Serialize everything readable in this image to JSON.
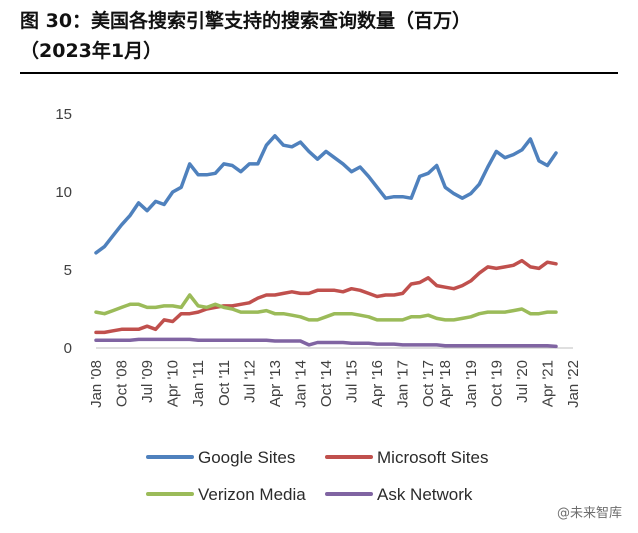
{
  "header": {
    "title_line1": "图 30：美国各搜索引擎支持的搜索查询数量（百万）",
    "title_line2": "（2023年1月）"
  },
  "watermark": "@未来智库",
  "chart_data": {
    "type": "line",
    "x_start": "Jan 2008",
    "x_end": "Jan 2022",
    "points_per_year": 4,
    "x_tick_labels": [
      "Jan '08",
      "Oct '08",
      "Jul '09",
      "Apr '10",
      "Jan '11",
      "Oct '11",
      "Jul '12",
      "Apr '13",
      "Jan '14",
      "Oct '14",
      "Jul '15",
      "Apr '16",
      "Jan '17",
      "Oct '17",
      "Apr '18",
      "Jan '19",
      "Oct '19",
      "Jul '20",
      "Apr '21",
      "Jan '22"
    ],
    "x_tick_index": [
      0,
      3,
      6,
      9,
      12,
      15,
      18,
      21,
      24,
      27,
      30,
      33,
      36,
      39,
      41,
      44,
      47,
      50,
      53,
      56
    ],
    "y_ticks": [
      "0",
      "5",
      "10",
      "15"
    ],
    "ylim": [
      0,
      15
    ],
    "grid": false,
    "legend_position": "bottom",
    "series": [
      {
        "name": "Google Sites",
        "color": "#4f81bd",
        "values": [
          6.1,
          6.5,
          7.2,
          7.9,
          8.5,
          9.3,
          8.8,
          9.4,
          9.2,
          10.0,
          10.3,
          11.8,
          11.1,
          11.1,
          11.2,
          11.8,
          11.7,
          11.3,
          11.8,
          11.8,
          13.0,
          13.6,
          13.0,
          12.9,
          13.2,
          12.6,
          12.1,
          12.6,
          12.2,
          11.8,
          11.3,
          11.6,
          11.0,
          10.3,
          9.6,
          9.7,
          9.7,
          9.6,
          11.0,
          11.2,
          11.7,
          10.3,
          9.9,
          9.6,
          9.9,
          10.5,
          11.6,
          12.6,
          12.2,
          12.4,
          12.7,
          13.4,
          12.0,
          11.7,
          12.5
        ]
      },
      {
        "name": "Microsoft Sites",
        "color": "#c0504d",
        "values": [
          1.0,
          1.0,
          1.1,
          1.2,
          1.2,
          1.2,
          1.4,
          1.2,
          1.8,
          1.7,
          2.2,
          2.2,
          2.3,
          2.5,
          2.6,
          2.7,
          2.7,
          2.8,
          2.9,
          3.2,
          3.4,
          3.4,
          3.5,
          3.6,
          3.5,
          3.5,
          3.7,
          3.7,
          3.7,
          3.6,
          3.8,
          3.7,
          3.5,
          3.3,
          3.4,
          3.4,
          3.5,
          4.1,
          4.2,
          4.5,
          4.0,
          3.9,
          3.8,
          4.0,
          4.3,
          4.8,
          5.2,
          5.1,
          5.2,
          5.3,
          5.6,
          5.2,
          5.1,
          5.5,
          5.4
        ]
      },
      {
        "name": "Verizon Media",
        "color": "#9bbb59",
        "values": [
          2.3,
          2.2,
          2.4,
          2.6,
          2.8,
          2.8,
          2.6,
          2.6,
          2.7,
          2.7,
          2.6,
          3.4,
          2.7,
          2.6,
          2.8,
          2.6,
          2.5,
          2.3,
          2.3,
          2.3,
          2.4,
          2.2,
          2.2,
          2.1,
          2.0,
          1.8,
          1.8,
          2.0,
          2.2,
          2.2,
          2.2,
          2.1,
          2.0,
          1.8,
          1.8,
          1.8,
          1.8,
          2.0,
          2.0,
          2.1,
          1.9,
          1.8,
          1.8,
          1.9,
          2.0,
          2.2,
          2.3,
          2.3,
          2.3,
          2.4,
          2.5,
          2.2,
          2.2,
          2.3,
          2.3
        ]
      },
      {
        "name": "Ask Network",
        "color": "#8064a2",
        "values": [
          0.5,
          0.5,
          0.5,
          0.5,
          0.5,
          0.55,
          0.55,
          0.55,
          0.55,
          0.55,
          0.55,
          0.55,
          0.5,
          0.5,
          0.5,
          0.5,
          0.5,
          0.5,
          0.5,
          0.5,
          0.5,
          0.45,
          0.45,
          0.45,
          0.45,
          0.2,
          0.35,
          0.35,
          0.35,
          0.35,
          0.3,
          0.3,
          0.3,
          0.25,
          0.25,
          0.25,
          0.2,
          0.2,
          0.2,
          0.2,
          0.2,
          0.15,
          0.15,
          0.15,
          0.15,
          0.15,
          0.15,
          0.15,
          0.15,
          0.15,
          0.15,
          0.15,
          0.15,
          0.15,
          0.1
        ]
      }
    ]
  }
}
